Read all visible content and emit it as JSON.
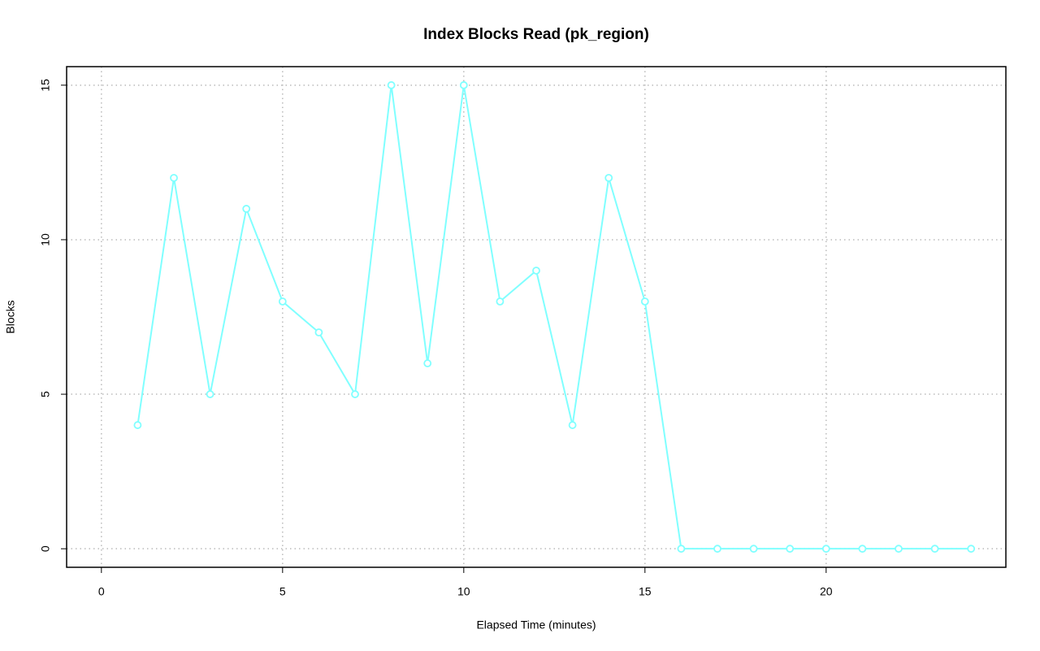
{
  "chart_data": {
    "type": "line",
    "title": "Index Blocks Read (pk_region)",
    "xlabel": "Elapsed Time (minutes)",
    "ylabel": "Blocks",
    "x": [
      1,
      2,
      3,
      4,
      5,
      6,
      7,
      8,
      9,
      10,
      11,
      12,
      13,
      14,
      15,
      16,
      17,
      18,
      19,
      20,
      21,
      22,
      23,
      24
    ],
    "values": [
      4,
      12,
      5,
      11,
      8,
      7,
      5,
      15,
      6,
      15,
      8,
      9,
      4,
      12,
      8,
      0,
      0,
      0,
      0,
      0,
      0,
      0,
      0,
      0
    ],
    "color": "#80ffff",
    "markers": true,
    "xlim": [
      -0.96,
      24.96
    ],
    "xticks": [
      0,
      5,
      10,
      15,
      20
    ],
    "ylim": [
      -0.6,
      15.6
    ],
    "yticks": [
      0,
      5,
      10,
      15
    ],
    "grid": true
  }
}
